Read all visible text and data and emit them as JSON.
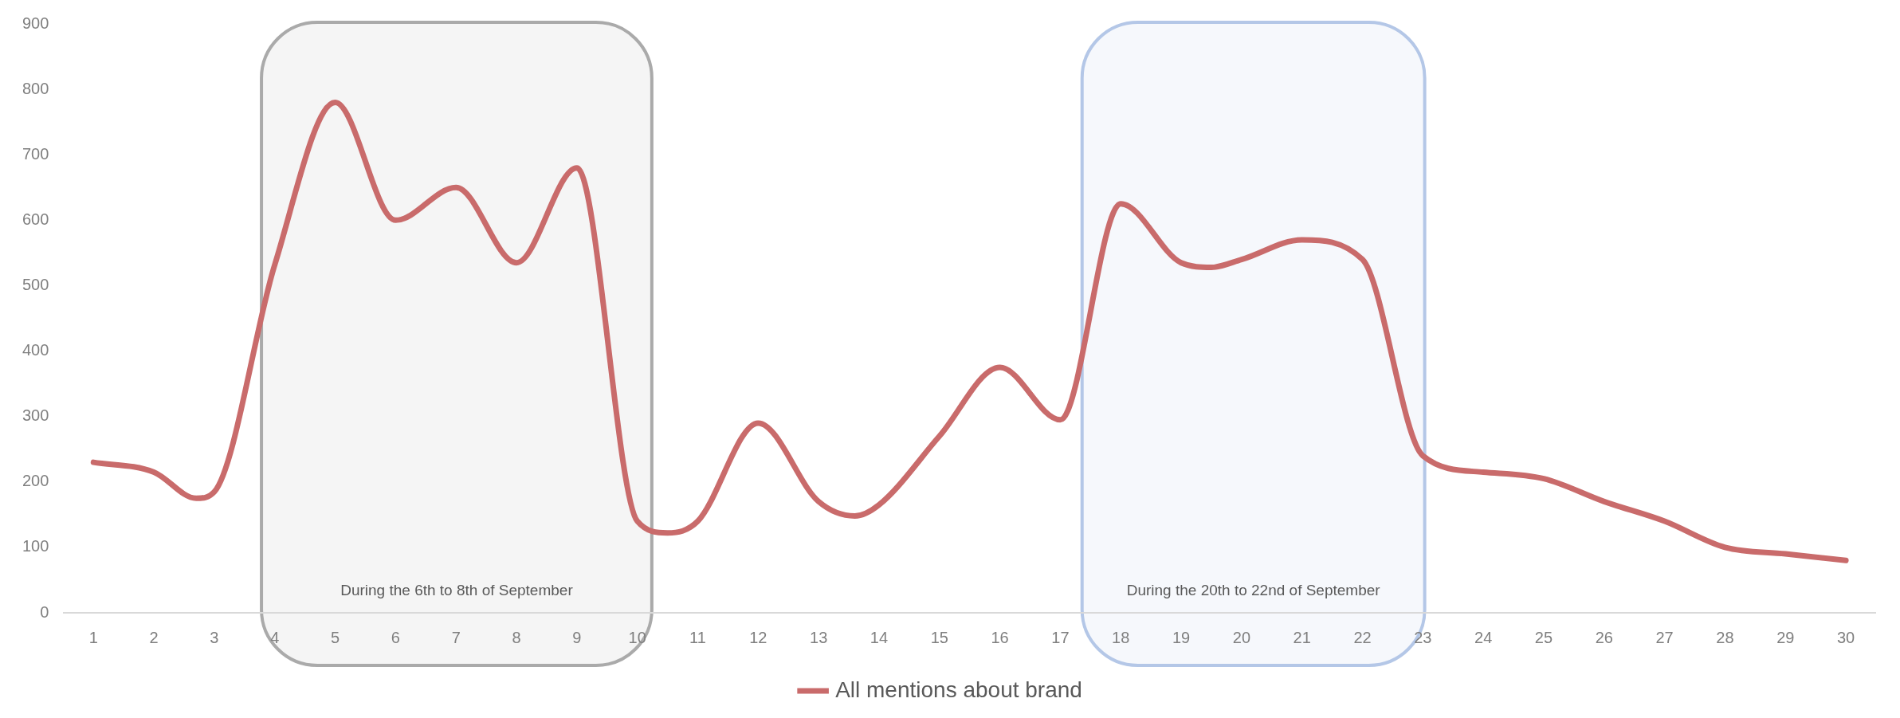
{
  "chart_data": {
    "type": "line",
    "x": [
      1,
      2,
      2.7,
      3,
      4,
      5,
      6,
      7,
      8,
      9,
      10,
      10.5,
      11,
      12,
      13,
      13.6,
      14,
      15,
      16,
      17,
      18,
      19,
      19.5,
      20,
      21,
      22,
      23,
      24,
      25,
      26,
      27,
      28,
      29,
      30
    ],
    "series": [
      {
        "name": "All mentions about brand",
        "color": "#c96b6b",
        "values": [
          230,
          215,
          175,
          185,
          532,
          780,
          600,
          650,
          535,
          680,
          140,
          122,
          140,
          290,
          170,
          148,
          165,
          270,
          375,
          295,
          625,
          535,
          528,
          540,
          570,
          540,
          240,
          215,
          205,
          170,
          140,
          100,
          90,
          80
        ]
      }
    ],
    "xlim": [
      0.5,
      30.5
    ],
    "xticks": [
      1,
      2,
      3,
      4,
      5,
      6,
      7,
      8,
      9,
      10,
      11,
      12,
      13,
      14,
      15,
      16,
      17,
      18,
      19,
      20,
      21,
      22,
      23,
      24,
      25,
      26,
      27,
      28,
      29,
      30
    ],
    "ylim": [
      0,
      900
    ],
    "yticks": [
      0,
      100,
      200,
      300,
      400,
      500,
      600,
      700,
      800,
      900
    ],
    "grid": false,
    "legend": "bottom",
    "marker": "none",
    "line_style": "solid",
    "bands": [
      {
        "axis": "x",
        "from": 3.78,
        "to": 10.24,
        "label": "During the 6th to 8th of September",
        "color": "#aaaaaa"
      },
      {
        "axis": "x",
        "from": 17.36,
        "to": 23.03,
        "label": "During the 20th to 22nd of September",
        "color": "#b4c7e7"
      }
    ]
  }
}
